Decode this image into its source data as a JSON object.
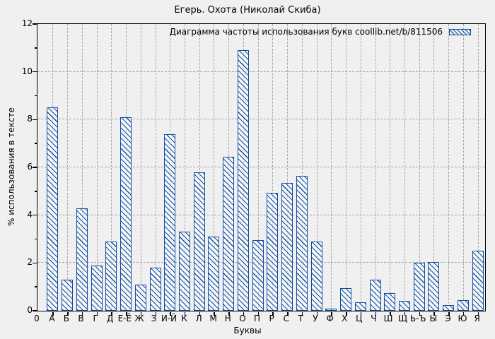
{
  "chart_data": {
    "type": "bar",
    "title": "Егерь. Охота (Николай Скиба)",
    "legend": "Диаграмма частоты использования букв coollib.net/b/811506",
    "legend_position": "top-right",
    "xlabel": "Буквы",
    "ylabel": "% использования в тексте",
    "origin_label": "0",
    "ylim": [
      0,
      12
    ],
    "ytick_step": 2,
    "grid": true,
    "bar_color": "#0f4ea3",
    "background_color": "#f0f0f0",
    "grid_color": "#a6a6a6",
    "categories": [
      "А",
      "Б",
      "В",
      "Г",
      "Д",
      "Е-Ё",
      "Ж",
      "З",
      "И-Й",
      "К",
      "Л",
      "М",
      "Н",
      "О",
      "П",
      "Р",
      "С",
      "Т",
      "У",
      "Ф",
      "Х",
      "Ц",
      "Ч",
      "Ш",
      "Щ",
      "Ь-Ъ",
      "Ы",
      "Э",
      "Ю",
      "Я"
    ],
    "values": [
      8.5,
      1.3,
      4.3,
      1.9,
      2.9,
      8.1,
      1.1,
      1.8,
      7.4,
      3.3,
      5.8,
      3.1,
      6.45,
      10.9,
      2.95,
      4.95,
      5.35,
      5.65,
      2.9,
      0.1,
      0.95,
      0.35,
      1.3,
      0.75,
      0.4,
      2.0,
      2.05,
      0.25,
      0.45,
      2.5
    ]
  }
}
